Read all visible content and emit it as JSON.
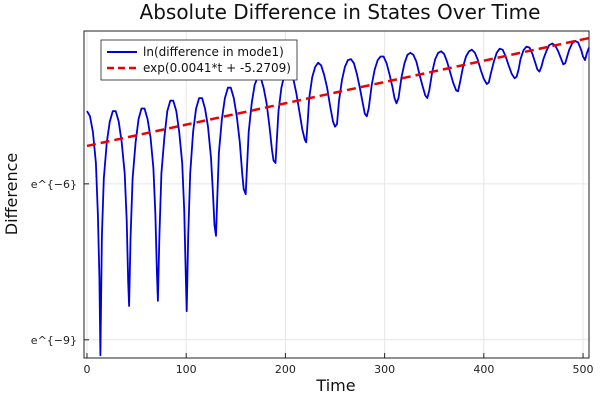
{
  "chart_data": {
    "type": "line",
    "title": "Absolute Difference in States Over Time",
    "xlabel": "Time",
    "ylabel": "Difference",
    "xlim": [
      -3,
      506
    ],
    "ylim": [
      -9.35,
      -3.06
    ],
    "x_ticks": [
      0,
      100,
      200,
      300,
      400,
      500
    ],
    "y_ticks": [
      {
        "value": -6,
        "label": "e^{−6}"
      },
      {
        "value": -9,
        "label": "e^{−9}"
      }
    ],
    "grid": true,
    "legend_position": "top-left",
    "series": [
      {
        "name": "ln(difference in mode1)",
        "color": "#0000dd",
        "style": "solid",
        "points": [
          [
            0,
            -4.6
          ],
          [
            3,
            -4.7
          ],
          [
            6,
            -5.0
          ],
          [
            9,
            -5.6
          ],
          [
            11,
            -6.6
          ],
          [
            12.5,
            -7.8
          ],
          [
            13.5,
            -9.3
          ],
          [
            15,
            -7.0
          ],
          [
            17,
            -5.9
          ],
          [
            20,
            -5.2
          ],
          [
            23,
            -4.8
          ],
          [
            26,
            -4.6
          ],
          [
            29,
            -4.6
          ],
          [
            32,
            -4.8
          ],
          [
            35,
            -5.2
          ],
          [
            38,
            -5.8
          ],
          [
            40,
            -6.7
          ],
          [
            41.5,
            -7.9
          ],
          [
            42.5,
            -8.35
          ],
          [
            44,
            -7.0
          ],
          [
            46,
            -5.9
          ],
          [
            49,
            -5.2
          ],
          [
            52,
            -4.75
          ],
          [
            55,
            -4.55
          ],
          [
            58,
            -4.55
          ],
          [
            61,
            -4.75
          ],
          [
            64,
            -5.1
          ],
          [
            67,
            -5.7
          ],
          [
            69,
            -6.6
          ],
          [
            70.5,
            -7.7
          ],
          [
            71.5,
            -8.25
          ],
          [
            73,
            -7.0
          ],
          [
            75,
            -5.8
          ],
          [
            78,
            -5.1
          ],
          [
            81,
            -4.6
          ],
          [
            84,
            -4.4
          ],
          [
            87,
            -4.4
          ],
          [
            90,
            -4.6
          ],
          [
            93,
            -5.0
          ],
          [
            96,
            -5.6
          ],
          [
            98,
            -6.5
          ],
          [
            99.5,
            -7.7
          ],
          [
            100.5,
            -8.45
          ],
          [
            102,
            -7.0
          ],
          [
            104,
            -5.8
          ],
          [
            107,
            -5.0
          ],
          [
            110,
            -4.55
          ],
          [
            113,
            -4.35
          ],
          [
            116,
            -4.35
          ],
          [
            119,
            -4.55
          ],
          [
            122,
            -4.9
          ],
          [
            125,
            -5.5
          ],
          [
            127,
            -6.2
          ],
          [
            128.5,
            -6.8
          ],
          [
            130,
            -7.0
          ],
          [
            131.5,
            -6.2
          ],
          [
            133,
            -5.4
          ],
          [
            136,
            -4.75
          ],
          [
            139,
            -4.35
          ],
          [
            142,
            -4.15
          ],
          [
            145,
            -4.15
          ],
          [
            148,
            -4.35
          ],
          [
            151,
            -4.7
          ],
          [
            154,
            -5.2
          ],
          [
            156.5,
            -5.8
          ],
          [
            158,
            -6.1
          ],
          [
            160,
            -6.2
          ],
          [
            161.5,
            -5.6
          ],
          [
            163,
            -5.0
          ],
          [
            166,
            -4.45
          ],
          [
            169,
            -4.1
          ],
          [
            172,
            -3.95
          ],
          [
            175,
            -3.95
          ],
          [
            178,
            -4.15
          ],
          [
            181,
            -4.45
          ],
          [
            184,
            -4.9
          ],
          [
            186.5,
            -5.35
          ],
          [
            188,
            -5.55
          ],
          [
            190,
            -5.6
          ],
          [
            191.5,
            -5.1
          ],
          [
            193,
            -4.6
          ],
          [
            196,
            -4.15
          ],
          [
            199,
            -3.9
          ],
          [
            202,
            -3.8
          ],
          [
            205,
            -3.82
          ],
          [
            208,
            -3.98
          ],
          [
            211,
            -4.25
          ],
          [
            214,
            -4.6
          ],
          [
            217,
            -4.95
          ],
          [
            219.5,
            -5.15
          ],
          [
            221,
            -5.2
          ],
          [
            222.5,
            -4.8
          ],
          [
            224,
            -4.35
          ],
          [
            227,
            -3.95
          ],
          [
            230,
            -3.75
          ],
          [
            233,
            -3.67
          ],
          [
            236,
            -3.72
          ],
          [
            239,
            -3.9
          ],
          [
            242,
            -4.15
          ],
          [
            245,
            -4.5
          ],
          [
            248,
            -4.8
          ],
          [
            250,
            -4.9
          ],
          [
            252,
            -4.85
          ],
          [
            254,
            -4.4
          ],
          [
            257,
            -4.0
          ],
          [
            260,
            -3.75
          ],
          [
            263,
            -3.62
          ],
          [
            266,
            -3.6
          ],
          [
            269,
            -3.68
          ],
          [
            272,
            -3.88
          ],
          [
            275,
            -4.15
          ],
          [
            278,
            -4.45
          ],
          [
            280,
            -4.65
          ],
          [
            282,
            -4.7
          ],
          [
            284,
            -4.55
          ],
          [
            287,
            -4.1
          ],
          [
            290,
            -3.8
          ],
          [
            293,
            -3.62
          ],
          [
            296,
            -3.55
          ],
          [
            299,
            -3.55
          ],
          [
            302,
            -3.68
          ],
          [
            305,
            -3.9
          ],
          [
            308,
            -4.15
          ],
          [
            310,
            -4.35
          ],
          [
            312,
            -4.45
          ],
          [
            314,
            -4.35
          ],
          [
            317,
            -3.95
          ],
          [
            320,
            -3.68
          ],
          [
            323,
            -3.52
          ],
          [
            326,
            -3.48
          ],
          [
            329,
            -3.52
          ],
          [
            332,
            -3.65
          ],
          [
            335,
            -3.88
          ],
          [
            338,
            -4.1
          ],
          [
            341,
            -4.3
          ],
          [
            343,
            -4.35
          ],
          [
            345,
            -4.2
          ],
          [
            348,
            -3.85
          ],
          [
            351,
            -3.6
          ],
          [
            354,
            -3.48
          ],
          [
            357,
            -3.45
          ],
          [
            360,
            -3.5
          ],
          [
            363,
            -3.65
          ],
          [
            366,
            -3.85
          ],
          [
            369,
            -4.05
          ],
          [
            372,
            -4.2
          ],
          [
            374,
            -4.22
          ],
          [
            376,
            -4.05
          ],
          [
            379,
            -3.75
          ],
          [
            382,
            -3.55
          ],
          [
            385,
            -3.45
          ],
          [
            388,
            -3.42
          ],
          [
            391,
            -3.48
          ],
          [
            394,
            -3.62
          ],
          [
            397,
            -3.82
          ],
          [
            400,
            -3.98
          ],
          [
            403,
            -4.08
          ],
          [
            405,
            -4.05
          ],
          [
            407,
            -3.88
          ],
          [
            410,
            -3.65
          ],
          [
            413,
            -3.48
          ],
          [
            416,
            -3.4
          ],
          [
            419,
            -3.42
          ],
          [
            422,
            -3.55
          ],
          [
            425,
            -3.72
          ],
          [
            428,
            -3.88
          ],
          [
            431,
            -3.97
          ],
          [
            433,
            -3.94
          ],
          [
            435,
            -3.8
          ],
          [
            437,
            -3.6
          ],
          [
            440,
            -3.43
          ],
          [
            443,
            -3.36
          ],
          [
            446,
            -3.38
          ],
          [
            449,
            -3.5
          ],
          [
            452,
            -3.68
          ],
          [
            454,
            -3.8
          ],
          [
            456,
            -3.84
          ],
          [
            458,
            -3.75
          ],
          [
            460,
            -3.6
          ],
          [
            463,
            -3.45
          ],
          [
            466,
            -3.33
          ],
          [
            469,
            -3.3
          ],
          [
            472,
            -3.34
          ],
          [
            475,
            -3.45
          ],
          [
            478,
            -3.6
          ],
          [
            480,
            -3.7
          ],
          [
            482,
            -3.68
          ],
          [
            484,
            -3.55
          ],
          [
            486,
            -3.42
          ],
          [
            489,
            -3.3
          ],
          [
            492,
            -3.25
          ],
          [
            495,
            -3.28
          ],
          [
            498,
            -3.42
          ],
          [
            500,
            -3.55
          ],
          [
            502,
            -3.62
          ],
          [
            504,
            -3.48
          ],
          [
            506,
            -3.38
          ]
        ]
      },
      {
        "name": "exp(0.0041*t + -5.2709)",
        "color": "#ee0000",
        "style": "dashed",
        "slope": 0.0041,
        "intercept": -5.2709,
        "x_range": [
          0,
          506
        ]
      }
    ]
  }
}
